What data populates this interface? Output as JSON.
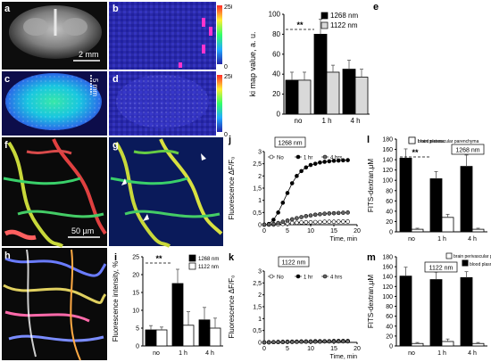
{
  "panel_labels": [
    "a",
    "b",
    "c",
    "d",
    "e",
    "f",
    "g",
    "h",
    "i",
    "j",
    "k",
    "l",
    "m"
  ],
  "image_panels": {
    "a_scale": "2 mm",
    "c_scale": "5 mm",
    "f_scale": "50 µm",
    "colorbar_top": {
      "max": "250",
      "min": "0"
    },
    "colorbar_bottom": {
      "max": "250",
      "min": "0"
    }
  },
  "chart_data": [
    {
      "id": "e",
      "type": "bar",
      "ylabel": "ki map value, a. u.",
      "ylim": [
        0,
        100
      ],
      "yticks": [
        0,
        20,
        40,
        60,
        80,
        100
      ],
      "categories": [
        "no",
        "1 h",
        "4 h"
      ],
      "series": [
        {
          "name": "1268 nm",
          "color": "#000000",
          "values": [
            34,
            80,
            45
          ],
          "errors": [
            8,
            15,
            9
          ]
        },
        {
          "name": "1122 nm",
          "color": "#d9d9d9",
          "values": [
            34,
            42,
            37
          ],
          "errors": [
            8,
            7,
            8
          ]
        }
      ],
      "significance": "**"
    },
    {
      "id": "i",
      "type": "bar",
      "ylabel": "Fluorescence intensity, %",
      "ylim": [
        0,
        25
      ],
      "yticks": [
        0,
        5,
        10,
        15,
        20,
        25
      ],
      "categories": [
        "no",
        "1 h",
        "4 h"
      ],
      "series": [
        {
          "name": "1268 nm",
          "color": "#000000",
          "values": [
            4.5,
            17.5,
            7.3
          ],
          "errors": [
            1.2,
            4,
            3.5
          ]
        },
        {
          "name": "1122 nm",
          "color": "#ffffff",
          "values": [
            4.5,
            5.8,
            5.0
          ],
          "errors": [
            0.8,
            3.8,
            2.8
          ]
        }
      ],
      "significance": "**"
    },
    {
      "id": "j",
      "type": "line",
      "ylabel": "Fluorescence ΔF/F₀",
      "xlabel": "Time, min",
      "xlim": [
        0,
        20
      ],
      "ylim": [
        0,
        3
      ],
      "xticks": [
        0,
        5,
        10,
        15,
        20
      ],
      "yticks": [
        0,
        0.5,
        1,
        1.5,
        2,
        2.5,
        3
      ],
      "ytick_labels": [
        "0",
        "0,5",
        "1",
        "1,5",
        "2",
        "2,5",
        "3"
      ],
      "box_label": "1268 nm",
      "x": [
        0,
        1,
        2,
        3,
        4,
        5,
        6,
        7,
        8,
        9,
        10,
        11,
        12,
        13,
        14,
        15,
        16,
        17,
        18
      ],
      "series": [
        {
          "name": "No",
          "marker": "open",
          "values": [
            0,
            0,
            0,
            0.01,
            0.03,
            0.05,
            0.07,
            0.08,
            0.09,
            0.1,
            0.1,
            0.11,
            0.11,
            0.12,
            0.12,
            0.12,
            0.13,
            0.13,
            0.13
          ]
        },
        {
          "name": "1 hr",
          "marker": "filled",
          "values": [
            0,
            0.03,
            0.2,
            0.5,
            0.9,
            1.3,
            1.7,
            2.0,
            2.2,
            2.35,
            2.45,
            2.5,
            2.55,
            2.58,
            2.6,
            2.62,
            2.63,
            2.64,
            2.65
          ]
        },
        {
          "name": "4 hrs",
          "marker": "gray",
          "values": [
            0,
            0.01,
            0.03,
            0.07,
            0.12,
            0.17,
            0.22,
            0.27,
            0.31,
            0.35,
            0.38,
            0.41,
            0.43,
            0.45,
            0.46,
            0.47,
            0.48,
            0.49,
            0.5
          ]
        }
      ]
    },
    {
      "id": "k",
      "type": "line",
      "ylabel": "Fluorescence ΔF/F₀",
      "xlabel": "Time, min",
      "xlim": [
        0,
        20
      ],
      "ylim": [
        0,
        3
      ],
      "xticks": [
        0,
        5,
        10,
        15,
        20
      ],
      "yticks": [
        0,
        0.5,
        1,
        1.5,
        2,
        2.5,
        3
      ],
      "ytick_labels": [
        "0",
        "0,5",
        "1",
        "1,5",
        "2",
        "2,5",
        "3"
      ],
      "box_label": "1122 nm",
      "x": [
        0,
        1,
        2,
        3,
        4,
        5,
        6,
        7,
        8,
        9,
        10,
        11,
        12,
        13,
        14,
        15,
        16,
        17,
        18
      ],
      "series": [
        {
          "name": "No",
          "marker": "open",
          "values": [
            0,
            0,
            0.01,
            0.01,
            0.02,
            0.02,
            0.02,
            0.03,
            0.03,
            0.03,
            0.03,
            0.04,
            0.04,
            0.04,
            0.04,
            0.04,
            0.05,
            0.05,
            0.05
          ]
        },
        {
          "name": "1 hr",
          "marker": "filled",
          "values": [
            0,
            0.01,
            0.01,
            0.02,
            0.02,
            0.03,
            0.03,
            0.03,
            0.04,
            0.04,
            0.04,
            0.05,
            0.05,
            0.05,
            0.05,
            0.06,
            0.06,
            0.06,
            0.06
          ]
        },
        {
          "name": "4 hrs",
          "marker": "gray",
          "values": [
            0,
            0,
            0.01,
            0.01,
            0.01,
            0.02,
            0.02,
            0.02,
            0.03,
            0.03,
            0.03,
            0.03,
            0.03,
            0.04,
            0.04,
            0.04,
            0.04,
            0.04,
            0.04
          ]
        }
      ]
    },
    {
      "id": "l",
      "type": "bar",
      "ylabel": "FITS-dextran,μM",
      "ylim": [
        0,
        180
      ],
      "yticks": [
        0,
        20,
        40,
        60,
        80,
        100,
        120,
        140,
        160,
        180
      ],
      "categories": [
        "no",
        "1 h",
        "4 h"
      ],
      "box_label": "1268 nm",
      "series": [
        {
          "name": "blood plasma",
          "color": "#000000",
          "values": [
            143,
            103,
            127
          ],
          "errors": [
            18,
            14,
            22
          ]
        },
        {
          "name": "brain perivascular parenchyma",
          "color": "#ffffff",
          "values": [
            5,
            28,
            5
          ],
          "errors": [
            2,
            6,
            2
          ]
        }
      ],
      "significance": "**"
    },
    {
      "id": "m",
      "type": "bar",
      "ylabel": "FITS-dextran,μM",
      "ylim": [
        0,
        180
      ],
      "yticks": [
        0,
        20,
        40,
        60,
        80,
        100,
        120,
        140,
        160,
        180
      ],
      "categories": [
        "no",
        "1 h",
        "4 h"
      ],
      "box_label": "1122 nm",
      "series": [
        {
          "name": "blood plasma",
          "color": "#000000",
          "values": [
            141,
            134,
            138
          ],
          "errors": [
            18,
            15,
            12
          ]
        },
        {
          "name": "brain perivascular parenchyma",
          "color": "#ffffff",
          "values": [
            5,
            9,
            5
          ],
          "errors": [
            2,
            5,
            2
          ]
        }
      ]
    }
  ]
}
